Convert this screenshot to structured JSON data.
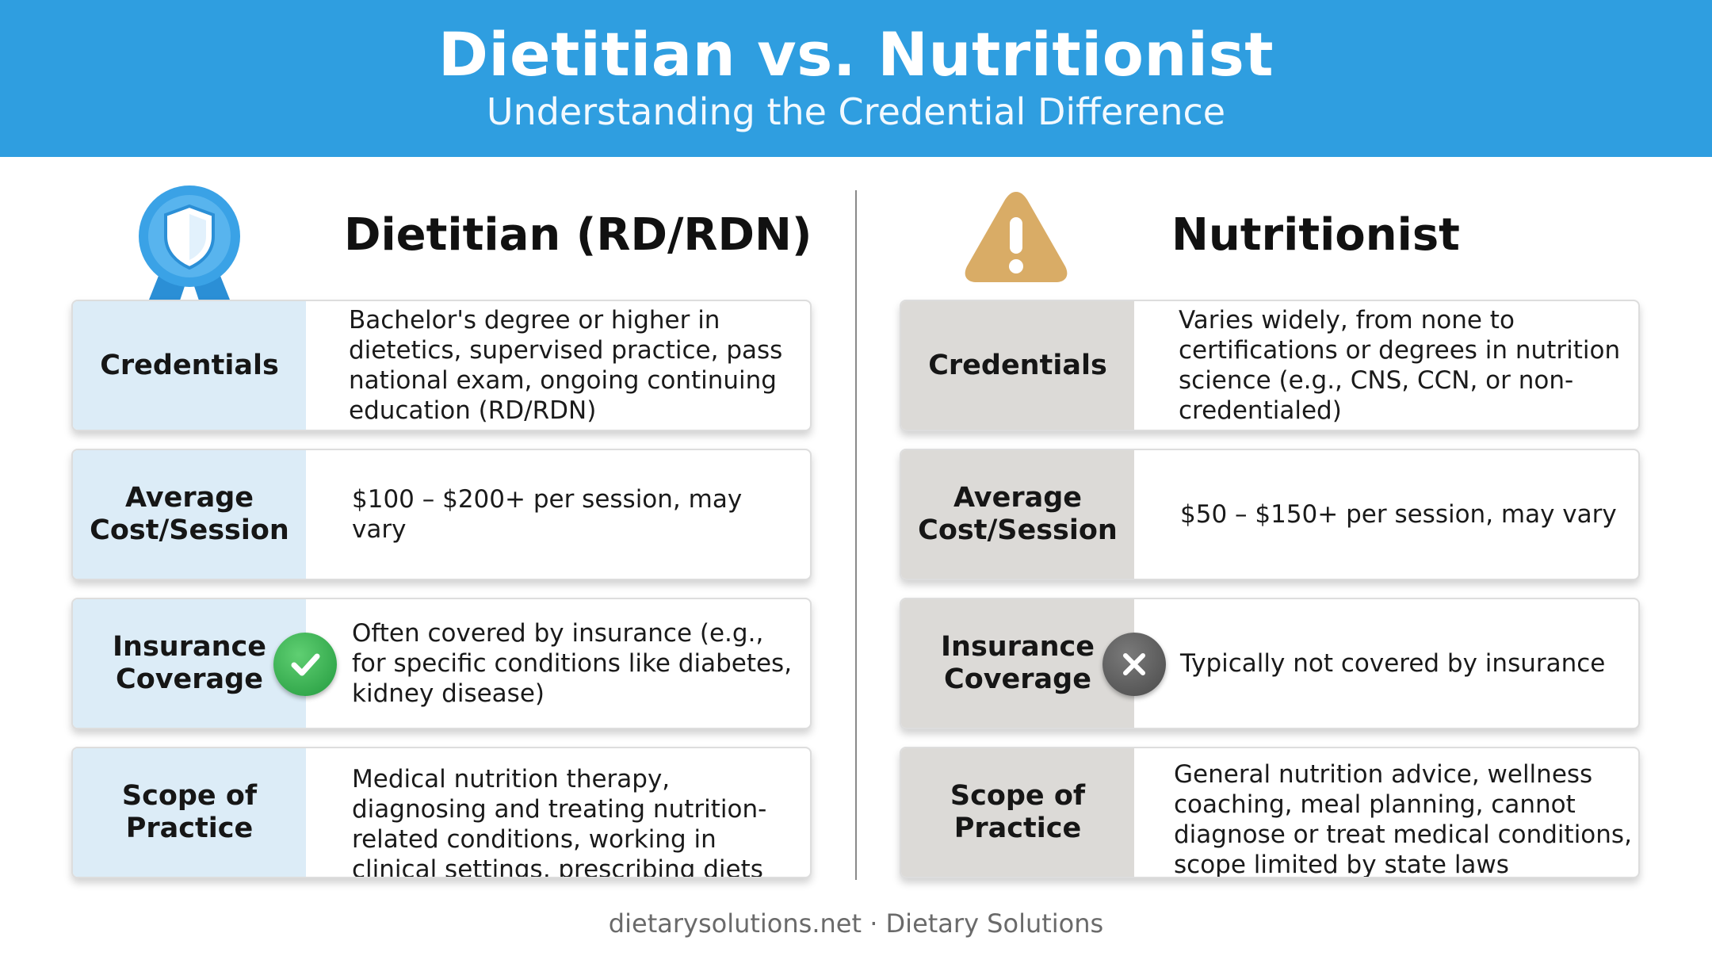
{
  "header": {
    "title": "Dietitian vs. Nutritionist",
    "subtitle": "Understanding the Credential Difference"
  },
  "dietitian": {
    "title": "Dietitian (RD/RDN)",
    "icon": "award-ribbon-shield-icon",
    "rows": [
      {
        "label": "Credentials",
        "text": "Bachelor's degree or higher in dietetics, supervised practice, pass national exam, ongoing continuing education (RD/RDN)"
      },
      {
        "label": "Average Cost/Session",
        "text": "$100 – $200+ per session, may vary"
      },
      {
        "label": "Insurance Coverage",
        "text": "Often covered by insurance (e.g., for specific conditions like diabetes, kidney disease)",
        "status_icon": "check-icon"
      },
      {
        "label": "Scope of Practice",
        "text": "Medical nutrition therapy, diagnosing and treating nutrition-related conditions, working in clinical settings, prescribing diets"
      }
    ]
  },
  "nutritionist": {
    "title": "Nutritionist",
    "icon": "warning-triangle-icon",
    "rows": [
      {
        "label": "Credentials",
        "text": "Varies widely, from none to certifications or degrees in nutrition science (e.g., CNS, CCN, or non-credentialed)"
      },
      {
        "label": "Average Cost/Session",
        "text": "$50 – $150+ per session, may vary"
      },
      {
        "label": "Insurance Coverage",
        "text": "Typically not covered by insurance",
        "status_icon": "x-icon"
      },
      {
        "label": "Scope of Practice",
        "text": "General nutrition advice, wellness coaching, meal planning, cannot diagnose or treat medical conditions, scope limited by state laws"
      }
    ]
  },
  "colors": {
    "header": "#2f9ee0",
    "dietitian_label_bg": "#dcecf7",
    "nutritionist_label_bg": "#dcdad7",
    "check": "#2ea84a",
    "cross": "#555555",
    "warning": "#d9ac66"
  },
  "footer": "dietarysolutions.net · Dietary Solutions"
}
